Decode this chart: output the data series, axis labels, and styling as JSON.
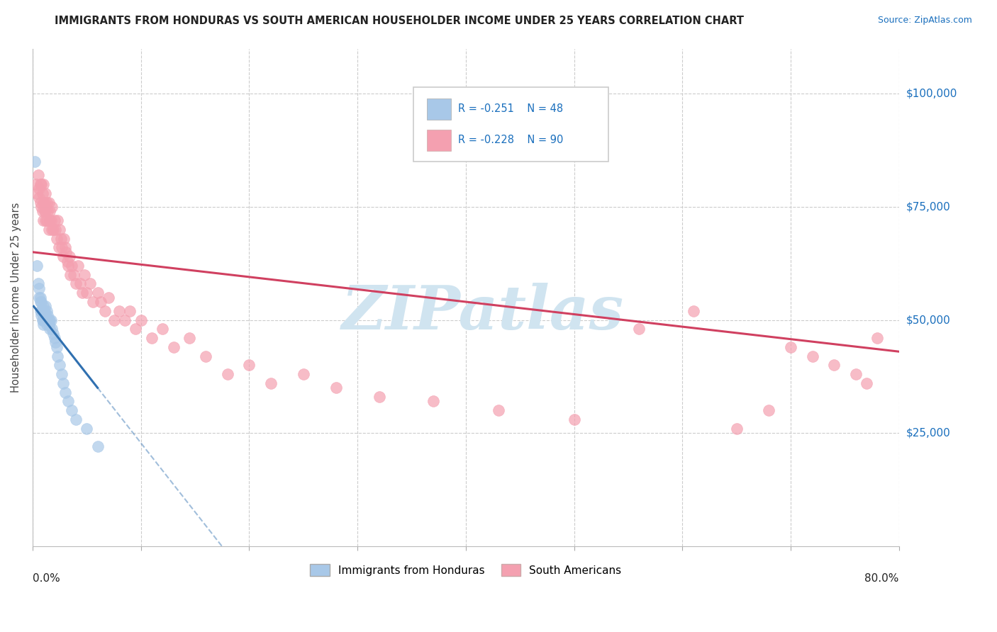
{
  "title": "IMMIGRANTS FROM HONDURAS VS SOUTH AMERICAN HOUSEHOLDER INCOME UNDER 25 YEARS CORRELATION CHART",
  "source": "Source: ZipAtlas.com",
  "ylabel": "Householder Income Under 25 years",
  "ytick_labels": [
    "$25,000",
    "$50,000",
    "$75,000",
    "$100,000"
  ],
  "ytick_values": [
    25000,
    50000,
    75000,
    100000
  ],
  "ylim": [
    0,
    110000
  ],
  "xlim": [
    0.0,
    0.8
  ],
  "R_blue": -0.251,
  "N_blue": 48,
  "R_pink": -0.228,
  "N_pink": 90,
  "legend_label_blue": "Immigrants from Honduras",
  "legend_label_pink": "South Americans",
  "blue_color": "#a8c8e8",
  "pink_color": "#f4a0b0",
  "blue_line_color": "#3070b0",
  "pink_line_color": "#d04060",
  "watermark": "ZIPatlas",
  "watermark_color": "#d0e4f0",
  "blue_points_x": [
    0.002,
    0.004,
    0.005,
    0.006,
    0.006,
    0.007,
    0.007,
    0.007,
    0.008,
    0.008,
    0.008,
    0.009,
    0.009,
    0.01,
    0.01,
    0.01,
    0.01,
    0.011,
    0.011,
    0.011,
    0.012,
    0.012,
    0.012,
    0.013,
    0.013,
    0.013,
    0.014,
    0.014,
    0.015,
    0.015,
    0.016,
    0.016,
    0.017,
    0.018,
    0.019,
    0.02,
    0.021,
    0.022,
    0.023,
    0.025,
    0.027,
    0.028,
    0.03,
    0.033,
    0.036,
    0.04,
    0.05,
    0.06
  ],
  "blue_points_y": [
    85000,
    62000,
    58000,
    57000,
    55000,
    55000,
    54000,
    52000,
    54000,
    52000,
    51000,
    52000,
    50000,
    53000,
    51000,
    50000,
    49000,
    52000,
    51000,
    50000,
    53000,
    51000,
    50000,
    52000,
    50000,
    49000,
    51000,
    50000,
    50000,
    49000,
    50000,
    48000,
    50000,
    48000,
    47000,
    46000,
    45000,
    44000,
    42000,
    40000,
    38000,
    36000,
    34000,
    32000,
    30000,
    28000,
    26000,
    22000
  ],
  "pink_points_x": [
    0.003,
    0.004,
    0.005,
    0.006,
    0.006,
    0.007,
    0.007,
    0.008,
    0.008,
    0.009,
    0.009,
    0.01,
    0.01,
    0.01,
    0.011,
    0.011,
    0.012,
    0.012,
    0.012,
    0.013,
    0.013,
    0.014,
    0.015,
    0.015,
    0.016,
    0.016,
    0.017,
    0.018,
    0.018,
    0.019,
    0.02,
    0.021,
    0.022,
    0.023,
    0.024,
    0.025,
    0.026,
    0.027,
    0.028,
    0.029,
    0.03,
    0.031,
    0.032,
    0.033,
    0.034,
    0.035,
    0.036,
    0.038,
    0.04,
    0.042,
    0.044,
    0.046,
    0.048,
    0.05,
    0.053,
    0.056,
    0.06,
    0.063,
    0.067,
    0.07,
    0.075,
    0.08,
    0.085,
    0.09,
    0.095,
    0.1,
    0.11,
    0.12,
    0.13,
    0.145,
    0.16,
    0.18,
    0.2,
    0.22,
    0.25,
    0.28,
    0.32,
    0.37,
    0.43,
    0.5,
    0.56,
    0.61,
    0.65,
    0.68,
    0.7,
    0.72,
    0.74,
    0.76,
    0.77,
    0.78
  ],
  "pink_points_y": [
    80000,
    78000,
    82000,
    79000,
    77000,
    80000,
    76000,
    80000,
    75000,
    78000,
    74000,
    76000,
    72000,
    80000,
    76000,
    74000,
    78000,
    74000,
    72000,
    76000,
    72000,
    74000,
    76000,
    70000,
    74000,
    72000,
    72000,
    70000,
    75000,
    70000,
    72000,
    70000,
    68000,
    72000,
    66000,
    70000,
    68000,
    66000,
    64000,
    68000,
    66000,
    65000,
    63000,
    62000,
    64000,
    60000,
    62000,
    60000,
    58000,
    62000,
    58000,
    56000,
    60000,
    56000,
    58000,
    54000,
    56000,
    54000,
    52000,
    55000,
    50000,
    52000,
    50000,
    52000,
    48000,
    50000,
    46000,
    48000,
    44000,
    46000,
    42000,
    38000,
    40000,
    36000,
    38000,
    35000,
    33000,
    32000,
    30000,
    28000,
    48000,
    52000,
    26000,
    30000,
    44000,
    42000,
    40000,
    38000,
    36000,
    46000
  ]
}
